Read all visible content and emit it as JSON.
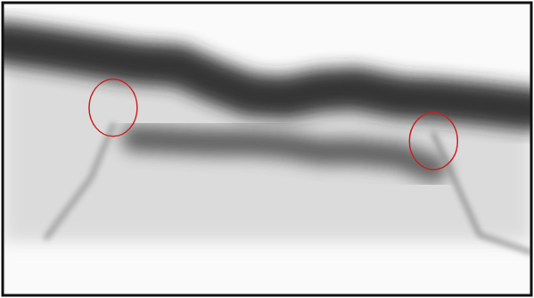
{
  "chart_data": {
    "type": "line",
    "x": [
      0,
      8.3,
      16.7,
      20.9,
      25,
      33.4,
      40.1,
      46.7,
      53.4,
      60.1,
      66.8,
      75.1,
      81.5,
      90.2,
      100
    ],
    "series": [
      {
        "color": "#222222",
        "type": "line",
        "values": [
          86.5,
          84.4,
          82.0,
          80.8,
          79.6,
          78.4,
          73.1,
          68.6,
          67.7,
          70.1,
          70.7,
          67.7,
          67.1,
          65.6,
          63.5
        ]
      },
      {
        "color": "#555555",
        "type": "line",
        "values": [
          null,
          null,
          null,
          null,
          53.6,
          52.7,
          52.1,
          52.1,
          51.2,
          49.1,
          49.1,
          47.6,
          43.1,
          null,
          null
        ]
      },
      {
        "color": "#999999",
        "type": "line",
        "values": [
          null,
          19.8,
          40.1,
          58.1,
          null,
          null,
          null,
          null,
          null,
          null,
          null,
          null,
          null,
          null,
          null
        ]
      },
      {
        "color": "#888888",
        "type": "line",
        "values": [
          null,
          null,
          null,
          null,
          null,
          null,
          null,
          null,
          null,
          null,
          null,
          null,
          55.1,
          20.7,
          14.7
        ]
      },
      {
        "color": "#cc2222",
        "type": "scatter",
        "marker": "circle",
        "line_style": "none",
        "values": [
          null,
          null,
          null,
          64.1,
          null,
          null,
          null,
          null,
          null,
          null,
          null,
          null,
          52.7,
          null,
          null
        ]
      }
    ],
    "xlim": [
      0,
      100
    ],
    "ylim": [
      0,
      100
    ],
    "xticks": [],
    "yticks": [],
    "grid": false,
    "tick_labels": false
  }
}
